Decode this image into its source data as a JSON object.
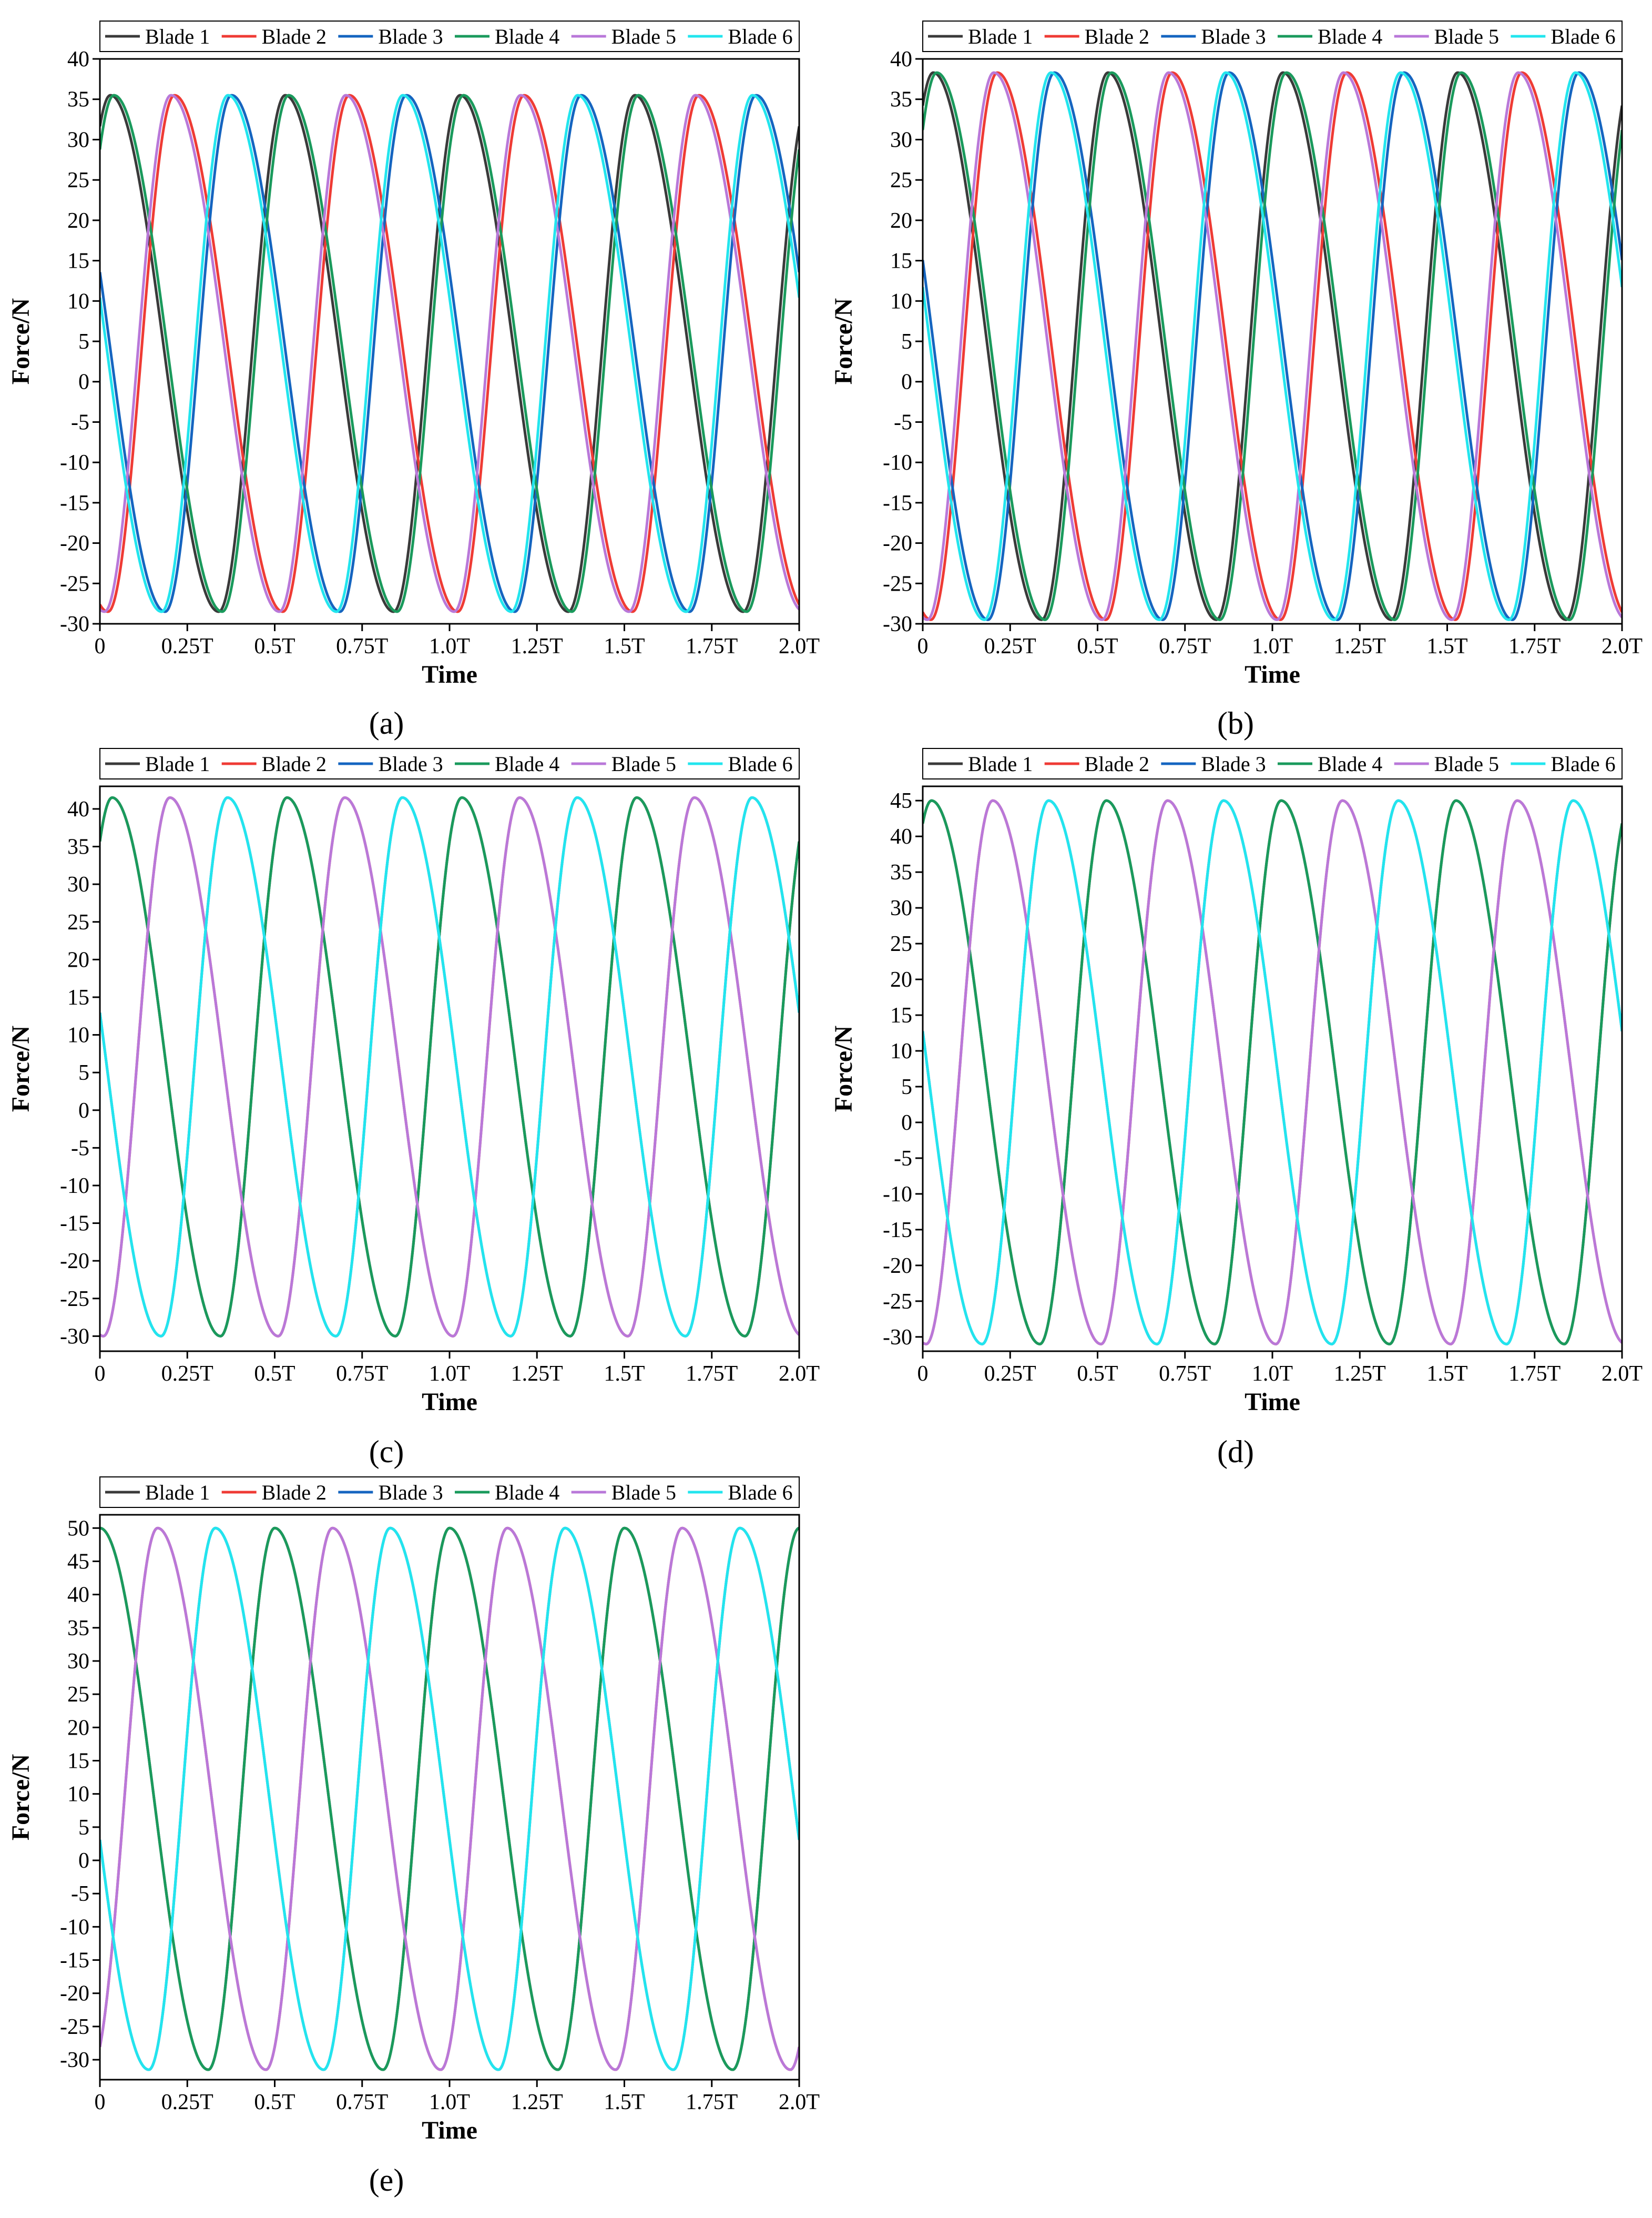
{
  "figure": {
    "panels": [
      {
        "id": "a",
        "label": "(a)"
      },
      {
        "id": "b",
        "label": "(b)"
      },
      {
        "id": "c",
        "label": "(c)"
      },
      {
        "id": "d",
        "label": "(d)"
      },
      {
        "id": "e",
        "label": "(e)"
      }
    ]
  },
  "chart_data": [
    {
      "type": "line",
      "panel": "a",
      "xlabel": "Time",
      "ylabel": "Force/N",
      "xlim": [
        0,
        2
      ],
      "ylim": [
        -30,
        40
      ],
      "xticks": [
        0,
        0.25,
        0.5,
        0.75,
        1.0,
        1.25,
        1.5,
        1.75,
        2.0
      ],
      "xtick_labels": [
        "0",
        "0.25T",
        "0.5T",
        "0.75T",
        "1.0T",
        "1.25T",
        "1.5T",
        "1.75T",
        "2.0T"
      ],
      "yticks": [
        -30,
        -25,
        -20,
        -15,
        -10,
        -5,
        0,
        5,
        10,
        15,
        20,
        25,
        30,
        35,
        40
      ],
      "peak": 35.5,
      "trough": -28.5,
      "period_fraction": 0.5,
      "phase_step": 0.0833,
      "legend_position": "top",
      "series": [
        {
          "name": "Blade 1",
          "color": "#3a3a3a",
          "peak_time": 0.03
        },
        {
          "name": "Blade 2",
          "color": "#ef3b35",
          "peak_time": 0.2133
        },
        {
          "name": "Blade 3",
          "color": "#1565c0",
          "peak_time": 0.3766
        },
        {
          "name": "Blade 4",
          "color": "#1a9a5c",
          "peak_time": 0.5399
        },
        {
          "name": "Blade 5",
          "color": "#b978d9",
          "peak_time": 0.7032
        },
        {
          "name": "Blade 6",
          "color": "#22e5ee",
          "peak_time": 0.8665
        }
      ]
    },
    {
      "type": "line",
      "panel": "b",
      "xlabel": "Time",
      "ylabel": "Force/N",
      "xlim": [
        0,
        2
      ],
      "ylim": [
        -30,
        40
      ],
      "xticks": [
        0,
        0.25,
        0.5,
        0.75,
        1.0,
        1.25,
        1.5,
        1.75,
        2.0
      ],
      "xtick_labels": [
        "0",
        "0.25T",
        "0.5T",
        "0.75T",
        "1.0T",
        "1.25T",
        "1.5T",
        "1.75T",
        "2.0T"
      ],
      "yticks": [
        -30,
        -25,
        -20,
        -15,
        -10,
        -5,
        0,
        5,
        10,
        15,
        20,
        25,
        30,
        35,
        40
      ],
      "peak": 38.3,
      "trough": -29.5,
      "period_fraction": 0.5,
      "phase_step": 0.0833,
      "legend_position": "top",
      "series": [
        {
          "name": "Blade 1",
          "color": "#3a3a3a",
          "peak_time": 0.03
        },
        {
          "name": "Blade 2",
          "color": "#ef3b35",
          "peak_time": 0.2133
        },
        {
          "name": "Blade 3",
          "color": "#1565c0",
          "peak_time": 0.3766
        },
        {
          "name": "Blade 4",
          "color": "#1a9a5c",
          "peak_time": 0.5399
        },
        {
          "name": "Blade 5",
          "color": "#b978d9",
          "peak_time": 0.7032
        },
        {
          "name": "Blade 6",
          "color": "#22e5ee",
          "peak_time": 0.8665
        }
      ]
    },
    {
      "type": "line",
      "panel": "c",
      "xlabel": "Time",
      "ylabel": "Force/N",
      "xlim": [
        0,
        2
      ],
      "ylim": [
        -32,
        43
      ],
      "xticks": [
        0,
        0.25,
        0.5,
        0.75,
        1.0,
        1.25,
        1.5,
        1.75,
        2.0
      ],
      "xtick_labels": [
        "0",
        "0.25T",
        "0.5T",
        "0.75T",
        "1.0T",
        "1.25T",
        "1.5T",
        "1.75T",
        "2.0T"
      ],
      "yticks": [
        -30,
        -25,
        -20,
        -15,
        -10,
        -5,
        0,
        5,
        10,
        15,
        20,
        25,
        30,
        35,
        40
      ],
      "peak": 41.5,
      "trough": -30.0,
      "period_fraction": 0.5,
      "phase_step": 0.0833,
      "legend_position": "top",
      "series": [
        {
          "name": "Blade 1",
          "color": "#3a3a3a",
          "peak_time": 0.035
        },
        {
          "name": "Blade 2",
          "color": "#ef3b35",
          "peak_time": 0.2
        },
        {
          "name": "Blade 3",
          "color": "#1565c0",
          "peak_time": 0.365
        },
        {
          "name": "Blade 4",
          "color": "#1a9a5c",
          "peak_time": 0.535
        },
        {
          "name": "Blade 5",
          "color": "#b978d9",
          "peak_time": 0.7
        },
        {
          "name": "Blade 6",
          "color": "#22e5ee",
          "peak_time": 0.865
        }
      ]
    },
    {
      "type": "line",
      "panel": "d",
      "xlabel": "Time",
      "ylabel": "Force/N",
      "xlim": [
        0,
        2
      ],
      "ylim": [
        -32,
        47
      ],
      "xticks": [
        0,
        0.25,
        0.5,
        0.75,
        1.0,
        1.25,
        1.5,
        1.75,
        2.0
      ],
      "xtick_labels": [
        "0",
        "0.25T",
        "0.5T",
        "0.75T",
        "1.0T",
        "1.25T",
        "1.5T",
        "1.75T",
        "2.0T"
      ],
      "yticks": [
        -30,
        -25,
        -20,
        -15,
        -10,
        -5,
        0,
        5,
        10,
        15,
        20,
        25,
        30,
        35,
        40,
        45
      ],
      "peak": 45.0,
      "trough": -31.0,
      "period_fraction": 0.5,
      "phase_step": 0.0833,
      "legend_position": "top",
      "series": [
        {
          "name": "Blade 1",
          "color": "#3a3a3a",
          "peak_time": 0.025
        },
        {
          "name": "Blade 2",
          "color": "#ef3b35",
          "peak_time": 0.2
        },
        {
          "name": "Blade 3",
          "color": "#1565c0",
          "peak_time": 0.36
        },
        {
          "name": "Blade 4",
          "color": "#1a9a5c",
          "peak_time": 0.525
        },
        {
          "name": "Blade 5",
          "color": "#b978d9",
          "peak_time": 0.7
        },
        {
          "name": "Blade 6",
          "color": "#22e5ee",
          "peak_time": 0.86
        }
      ]
    },
    {
      "type": "line",
      "panel": "e",
      "xlabel": "Time",
      "ylabel": "Force/N",
      "xlim": [
        0,
        2
      ],
      "ylim": [
        -33,
        52
      ],
      "xticks": [
        0,
        0.25,
        0.5,
        0.75,
        1.0,
        1.25,
        1.5,
        1.75,
        2.0
      ],
      "xtick_labels": [
        "0",
        "0.25T",
        "0.5T",
        "0.75T",
        "1.0T",
        "1.25T",
        "1.5T",
        "1.75T",
        "2.0T"
      ],
      "yticks": [
        -30,
        -25,
        -20,
        -15,
        -10,
        -5,
        0,
        5,
        10,
        15,
        20,
        25,
        30,
        35,
        40,
        45,
        50
      ],
      "peak": 50.0,
      "trough": -31.5,
      "period_fraction": 0.5,
      "phase_step": 0.0833,
      "legend_position": "top",
      "series": [
        {
          "name": "Blade 1",
          "color": "#3a3a3a",
          "peak_time": 0.0
        },
        {
          "name": "Blade 2",
          "color": "#ef3b35",
          "peak_time": 0.165
        },
        {
          "name": "Blade 3",
          "color": "#1565c0",
          "peak_time": 0.33
        },
        {
          "name": "Blade 4",
          "color": "#1a9a5c",
          "peak_time": 0.5
        },
        {
          "name": "Blade 5",
          "color": "#b978d9",
          "peak_time": 0.665
        },
        {
          "name": "Blade 6",
          "color": "#22e5ee",
          "peak_time": 0.83
        }
      ]
    }
  ]
}
